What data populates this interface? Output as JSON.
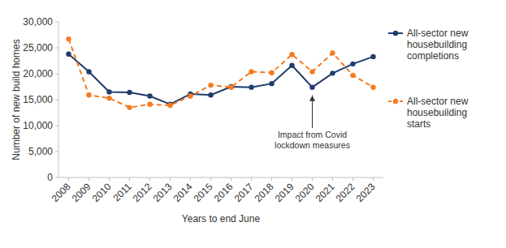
{
  "chart_data": {
    "type": "line",
    "x_label": "Years to end June",
    "y_label": "Number of new build homes",
    "categories": [
      "2008",
      "2009",
      "2010",
      "2011",
      "2012",
      "2013",
      "2014",
      "2015",
      "2016",
      "2017",
      "2018",
      "2019",
      "2020",
      "2021",
      "2022",
      "2023"
    ],
    "series": [
      {
        "name": "All-sector new housebuilding completions",
        "color": "#1f3d6b",
        "marker": "circle",
        "line_style": "solid",
        "values": [
          23800,
          20400,
          16500,
          16400,
          15700,
          14100,
          16100,
          15900,
          17500,
          17400,
          18100,
          21600,
          17400,
          20100,
          21900,
          23300
        ]
      },
      {
        "name": "All-sector new housebuilding starts",
        "color": "#f47b20",
        "marker": "circle",
        "line_style": "dashed",
        "values": [
          26700,
          15900,
          15300,
          13500,
          14100,
          13900,
          15700,
          17800,
          17400,
          20400,
          20200,
          23700,
          20400,
          24000,
          19700,
          17400
        ]
      }
    ],
    "ylim": [
      0,
      30000
    ],
    "yticks": [
      0,
      {
        "value": 5000,
        "label": "5,000"
      },
      {
        "value": 10000,
        "label": "10,000"
      },
      {
        "value": 15000,
        "label": "15,000"
      },
      {
        "value": 20000,
        "label": "20,000"
      },
      {
        "value": 25000,
        "label": "25,000"
      },
      {
        "value": 30000,
        "label": "30,000"
      }
    ],
    "grid": false,
    "legend": "right",
    "annotations": [
      {
        "text": "Impact from Covid lockdown measures",
        "category": "2020",
        "series": 0
      }
    ]
  }
}
